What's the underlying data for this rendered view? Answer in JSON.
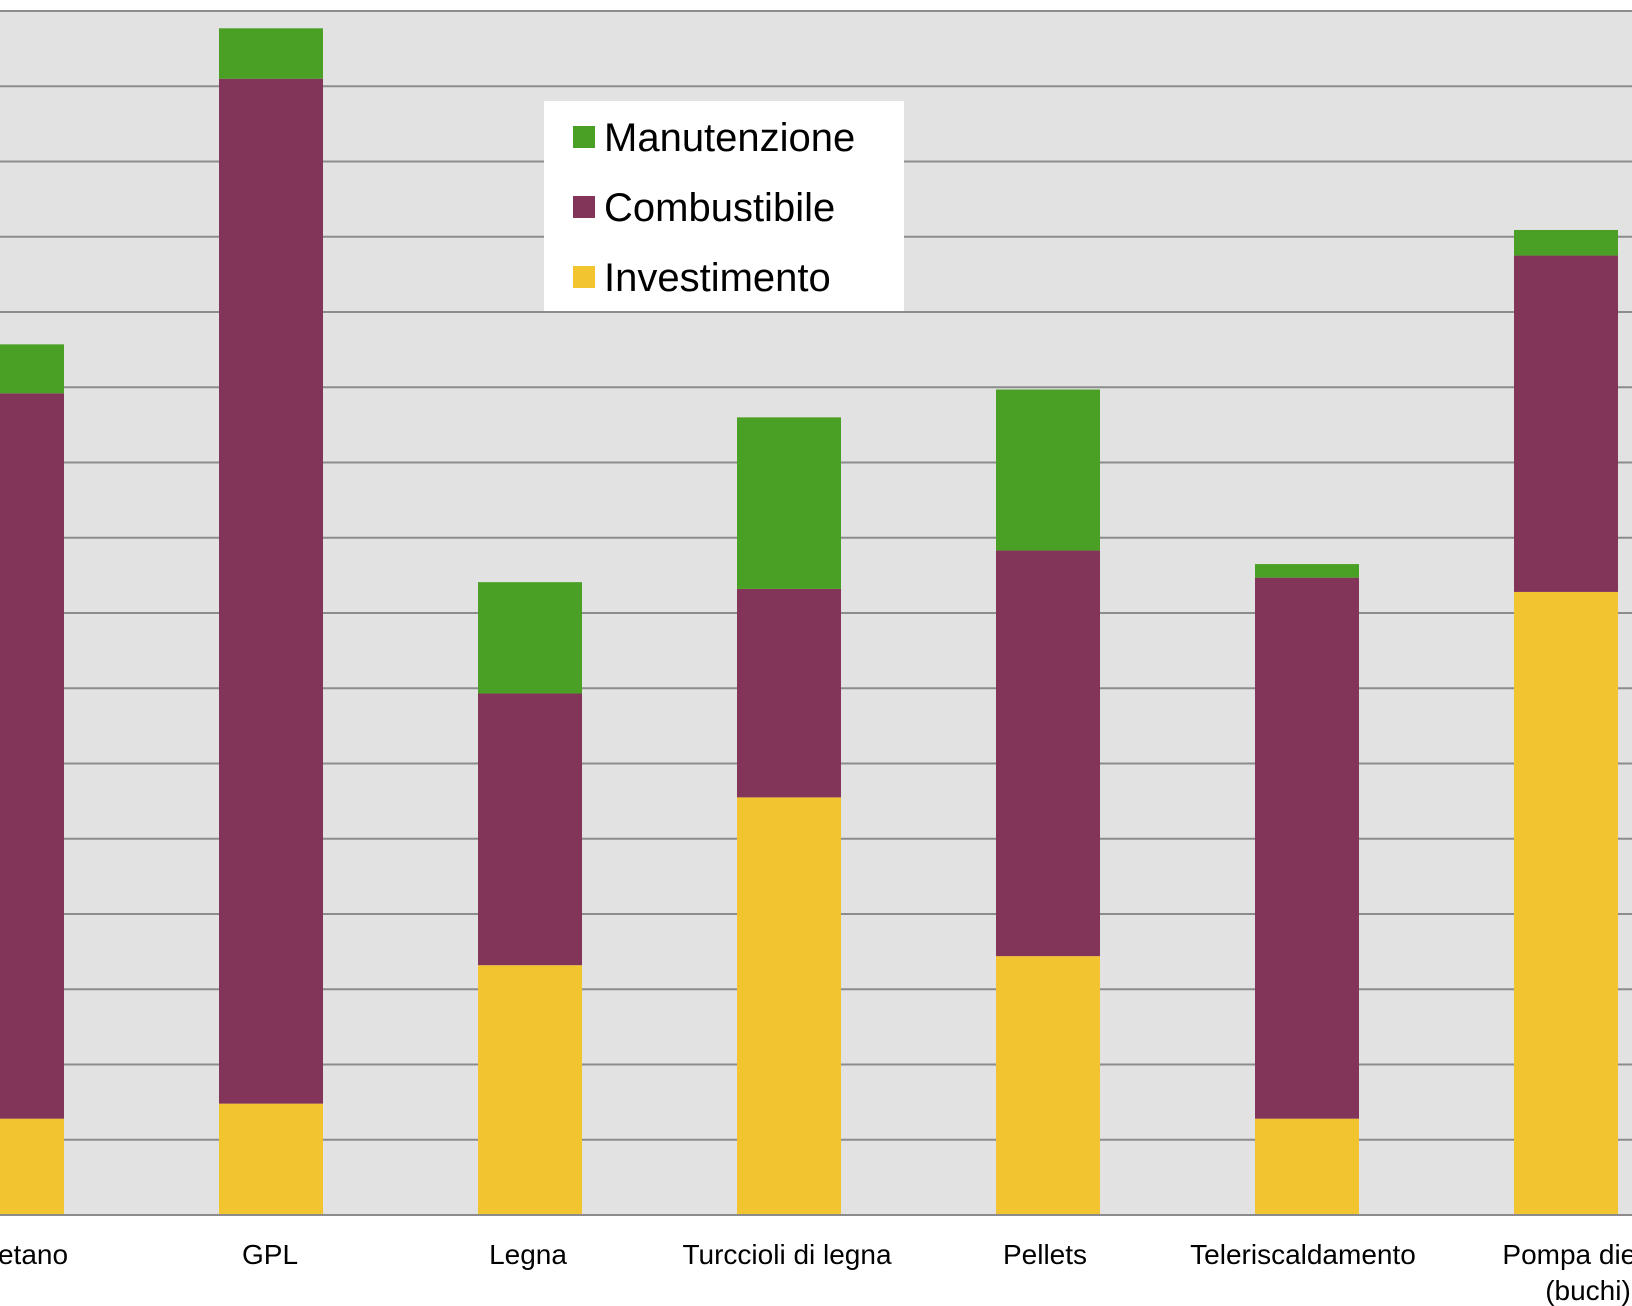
{
  "chart_data": {
    "type": "bar",
    "stacked": true,
    "categories": [
      [
        "etano"
      ],
      [
        "GPL"
      ],
      [
        "Legna"
      ],
      [
        "Turccioli di legna"
      ],
      [
        "Pellets"
      ],
      [
        "Teleriscaldamento"
      ],
      [
        "Pompa die ca",
        "(buchi)"
      ]
    ],
    "series": [
      {
        "name": "Investimento",
        "color": "#F2C530",
        "values": [
          1.28,
          1.48,
          3.32,
          5.55,
          3.44,
          1.28,
          8.28
        ]
      },
      {
        "name": "Combustibile",
        "color": "#823559",
        "values": [
          9.64,
          13.62,
          3.61,
          2.77,
          5.39,
          7.19,
          4.47
        ]
      },
      {
        "name": "Manutenzione",
        "color": "#4AA024",
        "values": [
          0.65,
          0.67,
          1.48,
          2.28,
          2.14,
          0.18,
          0.34
        ]
      }
    ],
    "legend_order": [
      "Manutenzione",
      "Combustibile",
      "Investimento"
    ],
    "legend_position": "top-center",
    "ylim": [
      0,
      16
    ],
    "grid": true,
    "gridline_values": [
      1,
      2,
      3,
      4,
      5,
      6,
      7,
      8,
      9,
      10,
      11,
      12,
      13,
      14,
      15,
      16
    ],
    "plot_background": "#E2E2E2",
    "gridline_color": "#8C8C8C",
    "title": "",
    "xlabel": "",
    "ylabel": ""
  }
}
